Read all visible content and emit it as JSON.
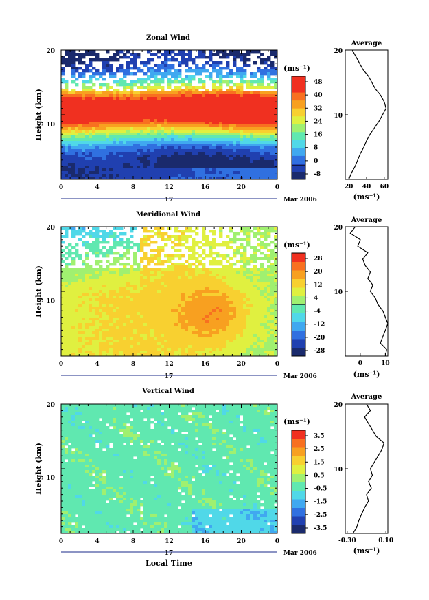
{
  "figure": {
    "date_label": "Mar 2006",
    "day_label": "17",
    "xlabel": "Local Time",
    "ylabel": "Height (km)",
    "unit": "(ms⁻¹)",
    "x_ticks": [
      "0",
      "4",
      "8",
      "12",
      "16",
      "20",
      "0"
    ],
    "y_ticks": [
      "10",
      "20"
    ],
    "average_title": "Average"
  },
  "chart_data": [
    {
      "type": "heatmap",
      "title": "Zonal Wind",
      "x": [
        0,
        24
      ],
      "y": [
        0,
        20
      ],
      "colorbar_ticks": [
        "48",
        "40",
        "32",
        "24",
        "16",
        "8",
        "0",
        "-8"
      ],
      "colorbar_range": [
        -8,
        52
      ],
      "colors": [
        "#1a2a6c",
        "#2040b0",
        "#3070e0",
        "#40a8f0",
        "#50d8e8",
        "#60e8b0",
        "#a0f070",
        "#e0f040",
        "#f8d030",
        "#f8a020",
        "#f87020",
        "#f03020",
        "#f03020"
      ],
      "zero_contour": true,
      "description_rows": "wind increases with height to a jet near 10-13 km"
    },
    {
      "type": "line",
      "title": "Average",
      "x_ticks": [
        "20",
        "40",
        "60"
      ],
      "xlim": [
        16,
        64
      ],
      "ylim": [
        0,
        20
      ],
      "y_ticks": [
        "10",
        "20"
      ],
      "y": [
        0,
        1,
        2,
        3,
        4,
        5,
        6,
        7,
        8,
        9,
        10,
        11,
        12,
        13,
        14,
        15,
        16,
        17,
        18,
        19,
        20
      ],
      "x": [
        20,
        23,
        27,
        30,
        33,
        37,
        40,
        44,
        49,
        54,
        58,
        62,
        60,
        56,
        50,
        46,
        42,
        36,
        32,
        28,
        24
      ]
    },
    {
      "type": "heatmap",
      "title": "Meridional Wind",
      "x": [
        0,
        24
      ],
      "y": [
        0,
        20
      ],
      "colorbar_ticks": [
        "28",
        "20",
        "12",
        "4",
        "-4",
        "-12",
        "-20",
        "-28"
      ],
      "colorbar_range": [
        -32,
        32
      ],
      "colors": [
        "#1a2a6c",
        "#2040b0",
        "#3070e0",
        "#40a8f0",
        "#50d8e8",
        "#60e8b0",
        "#a0f070",
        "#e0f040",
        "#f8d030",
        "#f8a020",
        "#f87020",
        "#f03020"
      ],
      "zero_contour": true
    },
    {
      "type": "line",
      "title": "Average",
      "x_ticks": [
        "0",
        "10"
      ],
      "xlim": [
        -6,
        11
      ],
      "ylim": [
        0,
        20
      ],
      "y_ticks": [
        "10",
        "20"
      ],
      "y": [
        0,
        1,
        2,
        3,
        4,
        5,
        6,
        7,
        8,
        9,
        10,
        11,
        12,
        13,
        14,
        15,
        16,
        17,
        18,
        19,
        20
      ],
      "x": [
        10,
        10.5,
        8,
        9,
        10,
        11,
        10,
        9,
        7,
        6,
        4,
        5,
        3,
        4,
        2,
        1,
        3,
        -1,
        0,
        -4,
        -2
      ]
    },
    {
      "type": "heatmap",
      "title": "Vertical Wind",
      "x": [
        0,
        24
      ],
      "y": [
        0,
        20
      ],
      "colorbar_ticks": [
        "3.5",
        "2.5",
        "1.5",
        "0.5",
        "-0.5",
        "-1.5",
        "-2.5",
        "-3.5"
      ],
      "colorbar_range": [
        -4,
        4
      ],
      "colors": [
        "#1a2a6c",
        "#2040b0",
        "#3070e0",
        "#40a8f0",
        "#50d8e8",
        "#60e8b0",
        "#a0f070",
        "#e0f040",
        "#f8d030",
        "#f8a020",
        "#f87020",
        "#f03020"
      ],
      "zero_contour": false
    },
    {
      "type": "line",
      "title": "Average",
      "x_ticks": [
        "-0.30",
        "0.10"
      ],
      "xlim": [
        -0.32,
        0.12
      ],
      "ylim": [
        0,
        20
      ],
      "y_ticks": [
        "10",
        "20"
      ],
      "y": [
        0,
        1,
        2,
        3,
        4,
        5,
        6,
        7,
        8,
        9,
        10,
        11,
        12,
        13,
        14,
        15,
        16,
        17,
        18,
        19,
        20
      ],
      "x": [
        -0.24,
        -0.2,
        -0.18,
        -0.15,
        -0.12,
        -0.08,
        -0.1,
        -0.05,
        -0.08,
        -0.04,
        -0.06,
        -0.02,
        0.02,
        0.06,
        0.08,
        0.0,
        -0.04,
        -0.08,
        -0.12,
        -0.06,
        -0.1
      ]
    }
  ]
}
